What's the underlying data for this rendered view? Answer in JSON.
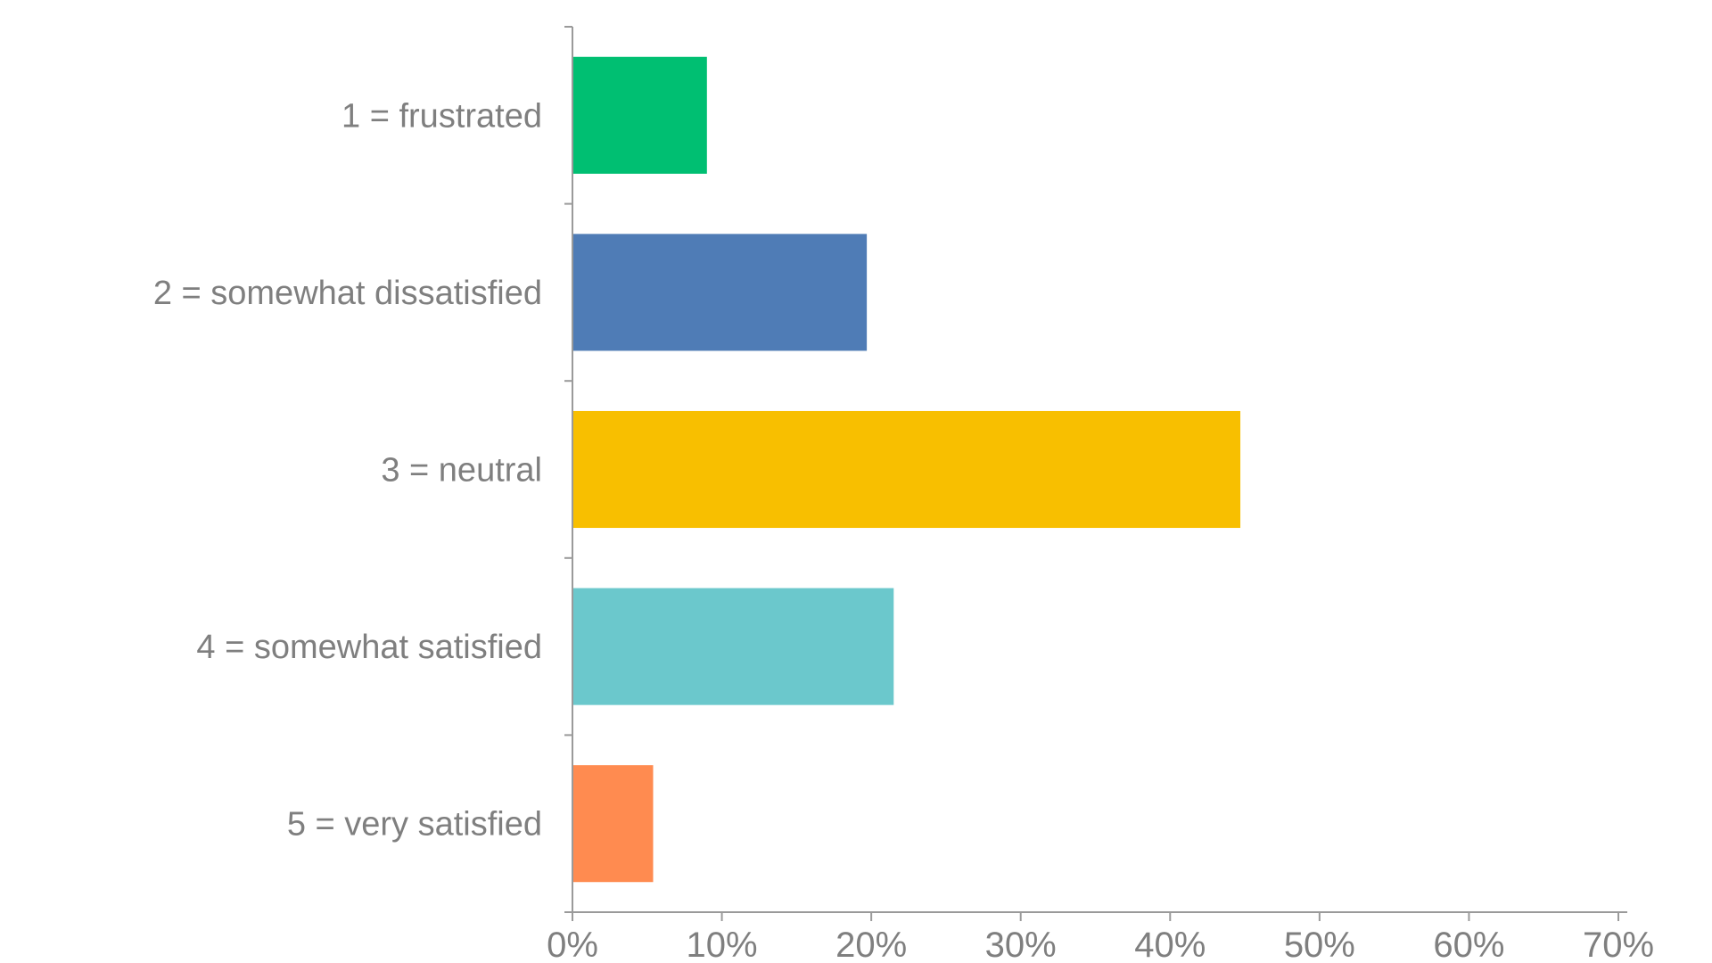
{
  "chart_data": {
    "type": "bar",
    "orientation": "horizontal",
    "categories": [
      "1 = frustrated",
      "2 = somewhat dissatisfied",
      "3 = neutral",
      "4 = somewhat satisfied",
      "5 = very satisfied"
    ],
    "values": [
      9.0,
      19.7,
      44.7,
      21.5,
      5.4
    ],
    "colors": [
      "#00BF72",
      "#4F7CB6",
      "#F8BF00",
      "#6BC8CC",
      "#FF8B50"
    ],
    "title": "",
    "xlabel": "",
    "ylabel": "",
    "xlim": [
      0,
      70
    ],
    "ticks": [
      0,
      10,
      20,
      30,
      40,
      50,
      60,
      70
    ],
    "tick_labels": [
      "0%",
      "10%",
      "20%",
      "30%",
      "40%",
      "50%",
      "60%",
      "70%"
    ],
    "grid": false,
    "legend": "none"
  }
}
